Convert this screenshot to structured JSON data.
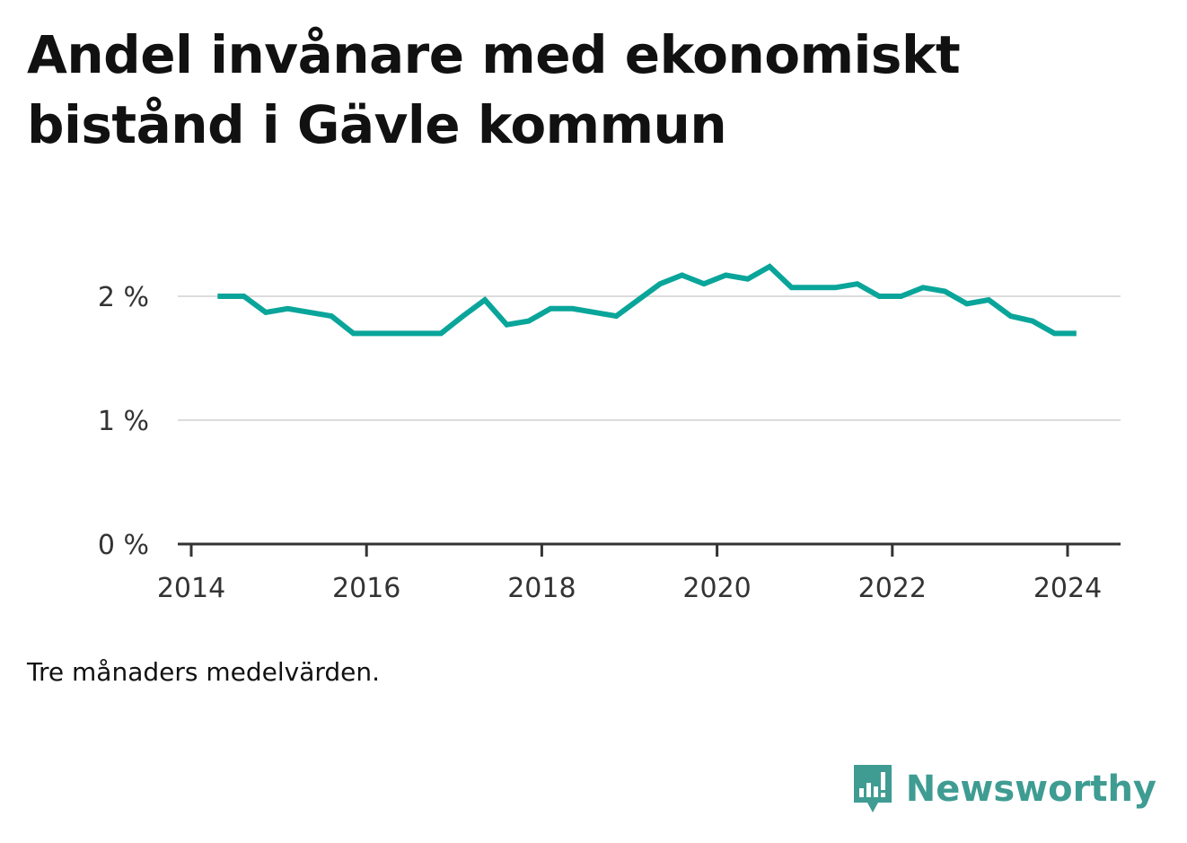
{
  "chart_data": {
    "type": "line",
    "title": "Andel invånare med ekonomiskt bistånd i Gävle kommun",
    "note": "Tre månaders medelvärden.",
    "xlabel": "",
    "ylabel": "",
    "x_ticks": [
      "2014",
      "2016",
      "2018",
      "2020",
      "2022",
      "2024"
    ],
    "y_ticks": [
      "0 %",
      "1 %",
      "2 %"
    ],
    "xlim": [
      2014,
      2024.6
    ],
    "ylim": [
      0,
      2.3
    ],
    "grid": true,
    "line_color": "#0aa59a",
    "series": [
      {
        "x": [
          2014.3,
          2014.6,
          2014.85,
          2015.1,
          2015.35,
          2015.6,
          2015.85,
          2016.1,
          2016.35,
          2016.6,
          2016.85,
          2017.1,
          2017.35,
          2017.6,
          2017.85,
          2018.1,
          2018.35,
          2018.6,
          2018.85,
          2019.1,
          2019.35,
          2019.6,
          2019.85,
          2020.1,
          2020.35,
          2020.6,
          2020.85,
          2021.1,
          2021.35,
          2021.6,
          2021.85,
          2022.1,
          2022.35,
          2022.6,
          2022.85,
          2023.1,
          2023.35,
          2023.6,
          2023.85,
          2024.1
        ],
        "y": [
          2.0,
          2.0,
          1.87,
          1.9,
          1.87,
          1.84,
          1.7,
          1.7,
          1.7,
          1.7,
          1.7,
          1.84,
          1.97,
          1.77,
          1.8,
          1.9,
          1.9,
          1.87,
          1.84,
          1.97,
          2.1,
          2.17,
          2.1,
          2.17,
          2.14,
          2.24,
          2.07,
          2.07,
          2.07,
          2.1,
          2.0,
          2.0,
          2.07,
          2.04,
          1.94,
          1.97,
          1.84,
          1.8,
          1.7,
          1.7
        ]
      }
    ]
  },
  "branding": {
    "name": "Newsworthy",
    "color": "#3f9c92",
    "icon": "chart-bubble-icon"
  }
}
